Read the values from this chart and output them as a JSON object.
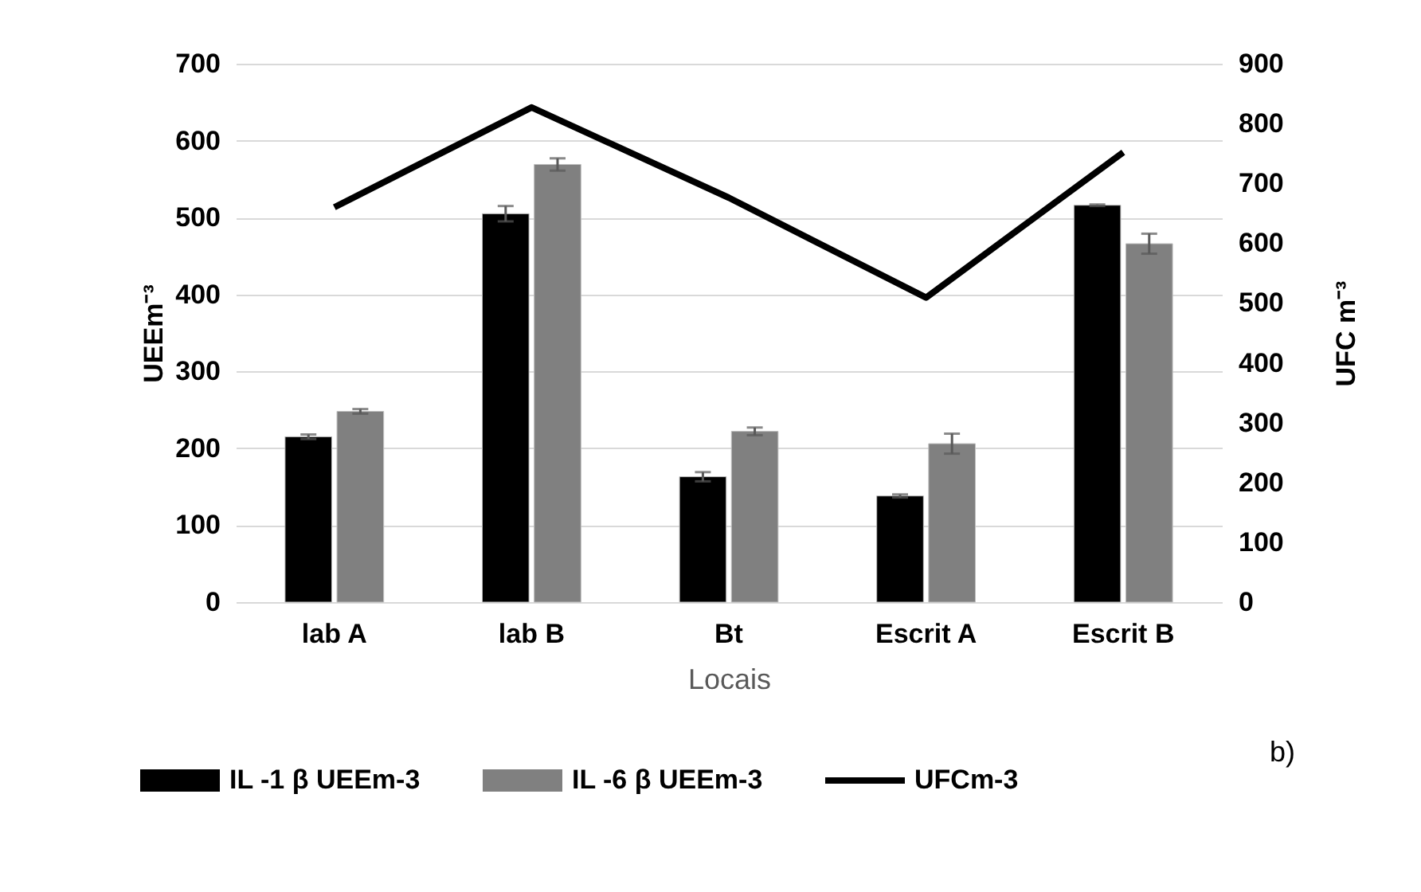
{
  "chart_data": {
    "type": "bar",
    "xlabel": "Locais",
    "ylabel": "UEEm⁻³",
    "y2label": "UFC m⁻³",
    "categories": [
      "lab A",
      "lab B",
      "Bt",
      "Escrit A",
      "Escrit B"
    ],
    "series": [
      {
        "name": "IL -1 β UEEm-3",
        "color": "#000000",
        "values": [
          215,
          505,
          163,
          138,
          516
        ],
        "errors": [
          3,
          10,
          6,
          2,
          1
        ]
      },
      {
        "name": "IL -6 β UEEm-3",
        "color": "#808080",
        "values": [
          248,
          569,
          222,
          206,
          466
        ],
        "errors": [
          3,
          8,
          5,
          13,
          13
        ]
      },
      {
        "name": "UFCm-3",
        "color": "#000000",
        "type": "line",
        "axis": "y2",
        "values": [
          660,
          827,
          676,
          509,
          752
        ]
      }
    ],
    "ylim": [
      0,
      700
    ],
    "yticks": [
      0,
      100,
      200,
      300,
      400,
      500,
      600,
      700
    ],
    "y2lim": [
      0,
      900
    ],
    "y2ticks": [
      0,
      100,
      200,
      300,
      400,
      500,
      600,
      700,
      800,
      900
    ],
    "grid": "y",
    "legend": "bottom",
    "annotations": [
      "b)"
    ]
  }
}
